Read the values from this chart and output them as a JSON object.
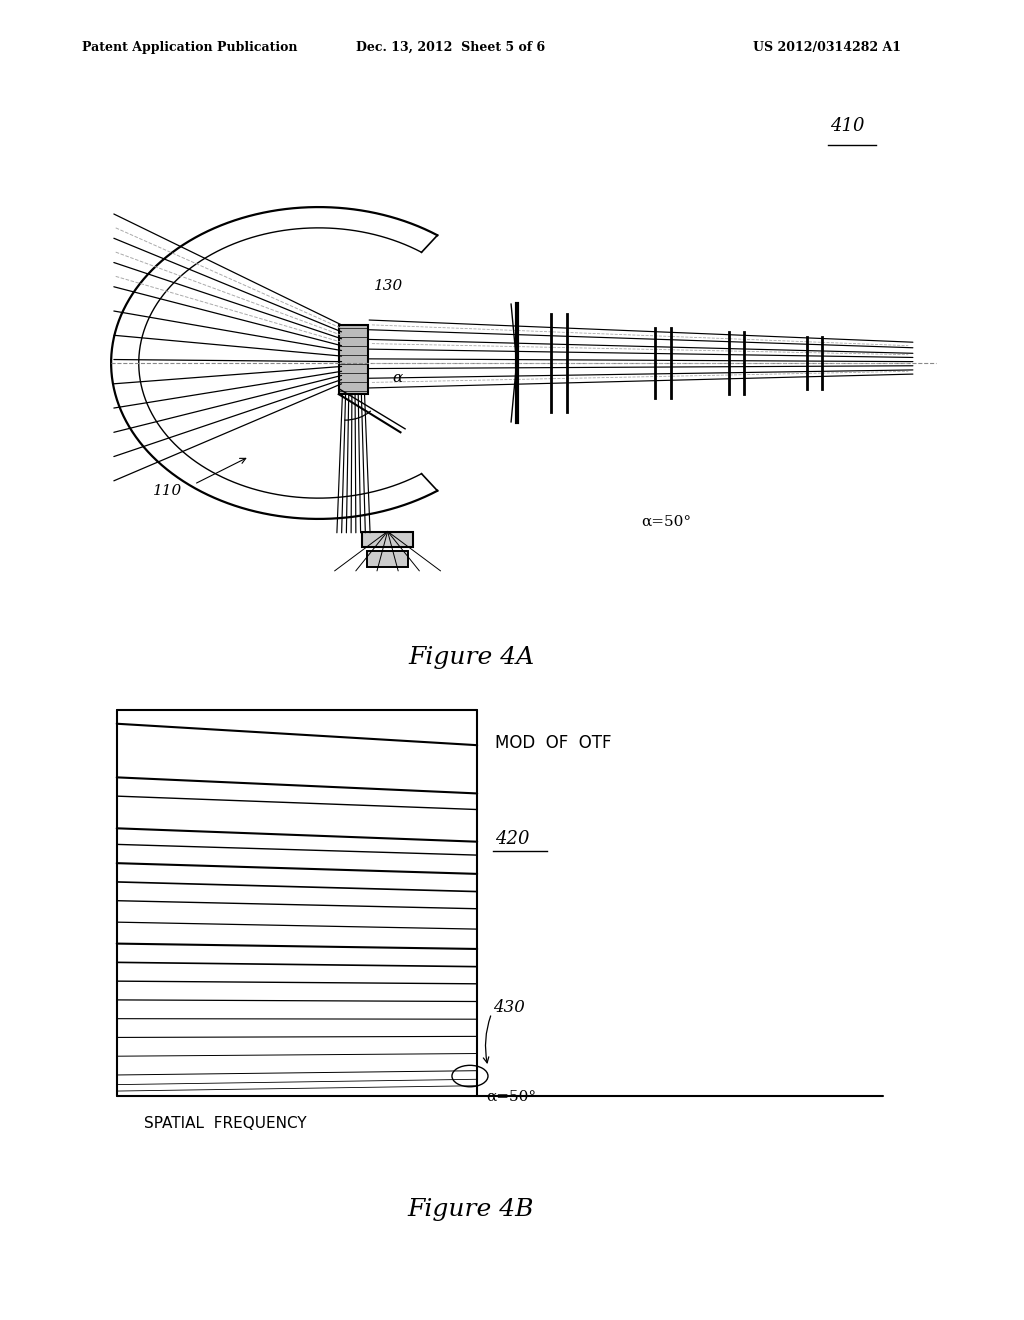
{
  "background_color": "#ffffff",
  "header_left": "Patent Application Publication",
  "header_center": "Dec. 13, 2012  Sheet 5 of 6",
  "header_right": "US 2012/0314282 A1",
  "fig4a_label": "Figure 4A",
  "fig4b_label": "Figure 4B",
  "label_410": "410",
  "label_130": "130",
  "label_110": "110",
  "label_alpha_4a": "α=50°",
  "label_alpha_small": "α",
  "label_420": "420",
  "label_430": "430",
  "label_alpha_4b": "α=50°",
  "label_mod_otf": "MOD  OF  OTF",
  "label_spatial_freq": "SPATIAL  FREQUENCY",
  "line_color": "#000000",
  "text_color": "#000000"
}
